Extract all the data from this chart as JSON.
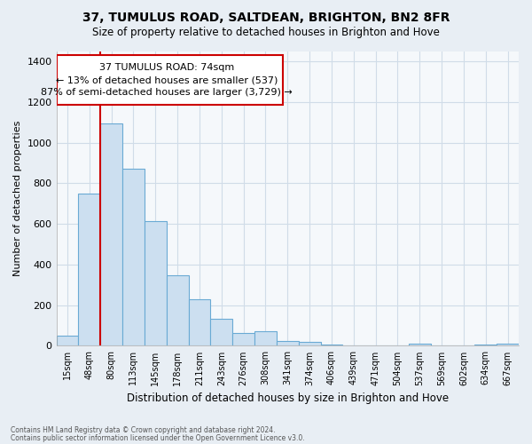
{
  "title": "37, TUMULUS ROAD, SALTDEAN, BRIGHTON, BN2 8FR",
  "subtitle": "Size of property relative to detached houses in Brighton and Hove",
  "xlabel": "Distribution of detached houses by size in Brighton and Hove",
  "ylabel": "Number of detached properties",
  "footnote1": "Contains HM Land Registry data © Crown copyright and database right 2024.",
  "footnote2": "Contains public sector information licensed under the Open Government Licence v3.0.",
  "bar_labels": [
    "15sqm",
    "48sqm",
    "80sqm",
    "113sqm",
    "145sqm",
    "178sqm",
    "211sqm",
    "243sqm",
    "276sqm",
    "308sqm",
    "341sqm",
    "374sqm",
    "406sqm",
    "439sqm",
    "471sqm",
    "504sqm",
    "537sqm",
    "569sqm",
    "602sqm",
    "634sqm",
    "667sqm"
  ],
  "bar_heights": [
    50,
    750,
    1095,
    870,
    615,
    348,
    228,
    132,
    65,
    72,
    22,
    18,
    5,
    2,
    0,
    0,
    10,
    0,
    0,
    5,
    12
  ],
  "bar_color": "#ccdff0",
  "bar_edge_color": "#6aaad4",
  "property_line_index": 2,
  "property_line_color": "#cc0000",
  "annotation_line1": "37 TUMULUS ROAD: 74sqm",
  "annotation_line2": "← 13% of detached houses are smaller (537)",
  "annotation_line3": "87% of semi-detached houses are larger (3,729) →",
  "annotation_box_color": "#ffffff",
  "annotation_box_edge": "#cc0000",
  "ylim": [
    0,
    1450
  ],
  "yticks": [
    0,
    200,
    400,
    600,
    800,
    1000,
    1200,
    1400
  ],
  "grid_color": "#d0dce8",
  "background_color": "#e8eef4",
  "plot_bg_color": "#f5f8fb"
}
